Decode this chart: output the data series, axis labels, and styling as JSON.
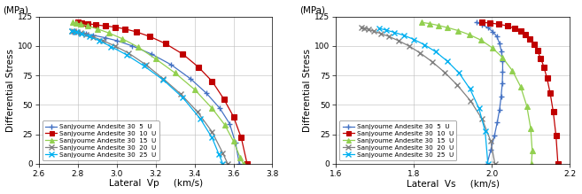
{
  "left_chart": {
    "title_y": "(MPa)",
    "xlabel": "Lateral  Vp     (km/s)",
    "ylabel": "Differential Stress",
    "xlim": [
      2.6,
      3.8
    ],
    "ylim": [
      0.0,
      125.0
    ],
    "xticks": [
      2.6,
      2.8,
      3.0,
      3.2,
      3.4,
      3.6,
      3.8
    ],
    "yticks": [
      0.0,
      25.0,
      50.0,
      75.0,
      100.0,
      125.0
    ],
    "series": [
      {
        "label": "Sanjyoume Andesite 30  5  U",
        "color": "#4472C4",
        "marker": "+",
        "markersize": 5,
        "markeredgewidth": 1.0,
        "x": [
          2.775,
          2.79,
          2.81,
          2.84,
          2.88,
          2.94,
          3.0,
          3.08,
          3.18,
          3.28,
          3.38,
          3.46,
          3.53,
          3.58,
          3.61,
          3.63
        ],
        "y": [
          112.0,
          112.0,
          111.5,
          110.5,
          109.0,
          107.0,
          104.5,
          100.0,
          93.0,
          84.0,
          72.0,
          60.0,
          47.0,
          34.0,
          18.0,
          0.0
        ]
      },
      {
        "label": "Sanjyoume Andesite 30  10  U",
        "color": "#C00000",
        "marker": "s",
        "markersize": 4,
        "markeredgewidth": 0.8,
        "x": [
          2.8,
          2.82,
          2.85,
          2.89,
          2.94,
          2.99,
          3.04,
          3.1,
          3.17,
          3.25,
          3.34,
          3.42,
          3.49,
          3.55,
          3.6,
          3.64,
          3.67
        ],
        "y": [
          120.0,
          119.5,
          119.0,
          118.0,
          117.0,
          116.0,
          114.5,
          112.0,
          108.0,
          102.0,
          93.0,
          82.0,
          70.0,
          55.0,
          40.0,
          22.0,
          0.0
        ]
      },
      {
        "label": "Sanjyoume Andesite 30  15  U",
        "color": "#92D050",
        "marker": "^",
        "markersize": 4,
        "markeredgewidth": 0.8,
        "x": [
          2.775,
          2.79,
          2.815,
          2.85,
          2.9,
          2.96,
          3.03,
          3.11,
          3.2,
          3.3,
          3.4,
          3.49,
          3.555,
          3.6,
          3.635,
          3.65
        ],
        "y": [
          120.0,
          119.5,
          118.5,
          117.0,
          114.5,
          111.0,
          106.0,
          99.0,
          89.0,
          77.0,
          63.0,
          47.0,
          33.0,
          19.0,
          5.0,
          0.0
        ]
      },
      {
        "label": "Sanjyoume Andesite 30  20  U",
        "color": "#808080",
        "marker": "x",
        "markersize": 5,
        "markeredgewidth": 1.0,
        "x": [
          2.77,
          2.78,
          2.795,
          2.815,
          2.84,
          2.88,
          2.93,
          2.99,
          3.06,
          3.15,
          3.24,
          3.33,
          3.415,
          3.49,
          3.545,
          3.57
        ],
        "y": [
          113.0,
          112.5,
          112.0,
          111.0,
          109.5,
          107.5,
          104.5,
          100.0,
          94.0,
          84.0,
          72.0,
          59.0,
          44.0,
          27.0,
          9.0,
          0.0
        ]
      },
      {
        "label": "Sanjyoume Andesite 30  25  U",
        "color": "#00B0F0",
        "marker": "x",
        "markersize": 5,
        "markeredgewidth": 1.0,
        "x": [
          2.77,
          2.79,
          2.82,
          2.86,
          2.91,
          2.97,
          3.05,
          3.14,
          3.24,
          3.34,
          3.43,
          3.49,
          3.525,
          3.545
        ],
        "y": [
          113.0,
          112.0,
          110.5,
          108.0,
          104.5,
          99.5,
          92.5,
          83.0,
          71.0,
          56.0,
          38.0,
          22.0,
          8.0,
          0.0
        ]
      }
    ]
  },
  "right_chart": {
    "title_y": "(MPa)",
    "xlabel": "Lateral  Vs     (km/s)",
    "ylabel": "Differential Stress",
    "xlim": [
      1.6,
      2.2
    ],
    "ylim": [
      0.0,
      125.0
    ],
    "xticks": [
      1.6,
      1.8,
      2.0,
      2.2
    ],
    "yticks": [
      0.0,
      25.0,
      50.0,
      75.0,
      100.0,
      125.0
    ],
    "series": [
      {
        "label": "Sanjyoume Andesite 30  5  U",
        "color": "#4472C4",
        "marker": "+",
        "markersize": 5,
        "markeredgewidth": 1.0,
        "x": [
          1.96,
          1.975,
          1.99,
          2.003,
          2.013,
          2.02,
          2.025,
          2.028,
          2.028,
          2.027,
          2.024,
          2.02,
          2.014,
          2.007,
          1.998,
          1.988
        ],
        "y": [
          120.0,
          118.0,
          115.5,
          112.0,
          108.0,
          102.0,
          95.0,
          87.0,
          78.0,
          68.0,
          57.0,
          46.0,
          35.0,
          24.0,
          12.0,
          0.0
        ]
      },
      {
        "label": "Sanjyoume Andesite 30  10  U",
        "color": "#C00000",
        "marker": "s",
        "markersize": 4,
        "markeredgewidth": 0.8,
        "x": [
          1.975,
          1.995,
          2.018,
          2.04,
          2.058,
          2.074,
          2.087,
          2.098,
          2.108,
          2.117,
          2.126,
          2.134,
          2.142,
          2.15,
          2.158,
          2.165,
          2.17
        ],
        "y": [
          120.0,
          119.5,
          118.5,
          117.0,
          115.0,
          112.5,
          109.5,
          106.0,
          101.5,
          96.0,
          89.5,
          82.0,
          72.5,
          60.0,
          44.0,
          24.0,
          0.0
        ]
      },
      {
        "label": "Sanjyoume Andesite 30  15  U",
        "color": "#92D050",
        "marker": "^",
        "markersize": 4,
        "markeredgewidth": 0.8,
        "x": [
          1.82,
          1.84,
          1.862,
          1.887,
          1.914,
          1.943,
          1.972,
          2.001,
          2.028,
          2.053,
          2.074,
          2.09,
          2.1,
          2.104,
          2.102
        ],
        "y": [
          120.0,
          119.0,
          117.5,
          115.5,
          113.0,
          109.5,
          105.0,
          98.5,
          90.0,
          79.0,
          65.5,
          49.0,
          30.0,
          11.0,
          0.0
        ]
      },
      {
        "label": "Sanjyoume Andesite 30  20  U",
        "color": "#808080",
        "marker": "x",
        "markersize": 5,
        "markeredgewidth": 1.0,
        "x": [
          1.665,
          1.672,
          1.683,
          1.697,
          1.715,
          1.736,
          1.76,
          1.787,
          1.816,
          1.847,
          1.879,
          1.912,
          1.945,
          1.975,
          1.997,
          2.008
        ],
        "y": [
          115.5,
          115.0,
          114.0,
          112.5,
          110.5,
          108.0,
          104.5,
          100.0,
          94.0,
          86.5,
          77.5,
          66.5,
          53.5,
          38.0,
          19.5,
          0.0
        ]
      },
      {
        "label": "Sanjyoume Andesite 30  25  U",
        "color": "#00B0F0",
        "marker": "x",
        "markersize": 5,
        "markeredgewidth": 1.0,
        "x": [
          1.71,
          1.728,
          1.75,
          1.774,
          1.8,
          1.827,
          1.856,
          1.886,
          1.916,
          1.944,
          1.967,
          1.983,
          1.99
        ],
        "y": [
          115.0,
          113.5,
          111.5,
          109.0,
          105.5,
          101.0,
          95.0,
          87.0,
          77.0,
          63.5,
          47.0,
          27.5,
          0.0
        ]
      }
    ]
  },
  "legend_fontsize": 5.2,
  "tick_fontsize": 6.5,
  "label_fontsize": 7.5,
  "title_fontsize": 7.5,
  "linewidth": 0.9
}
